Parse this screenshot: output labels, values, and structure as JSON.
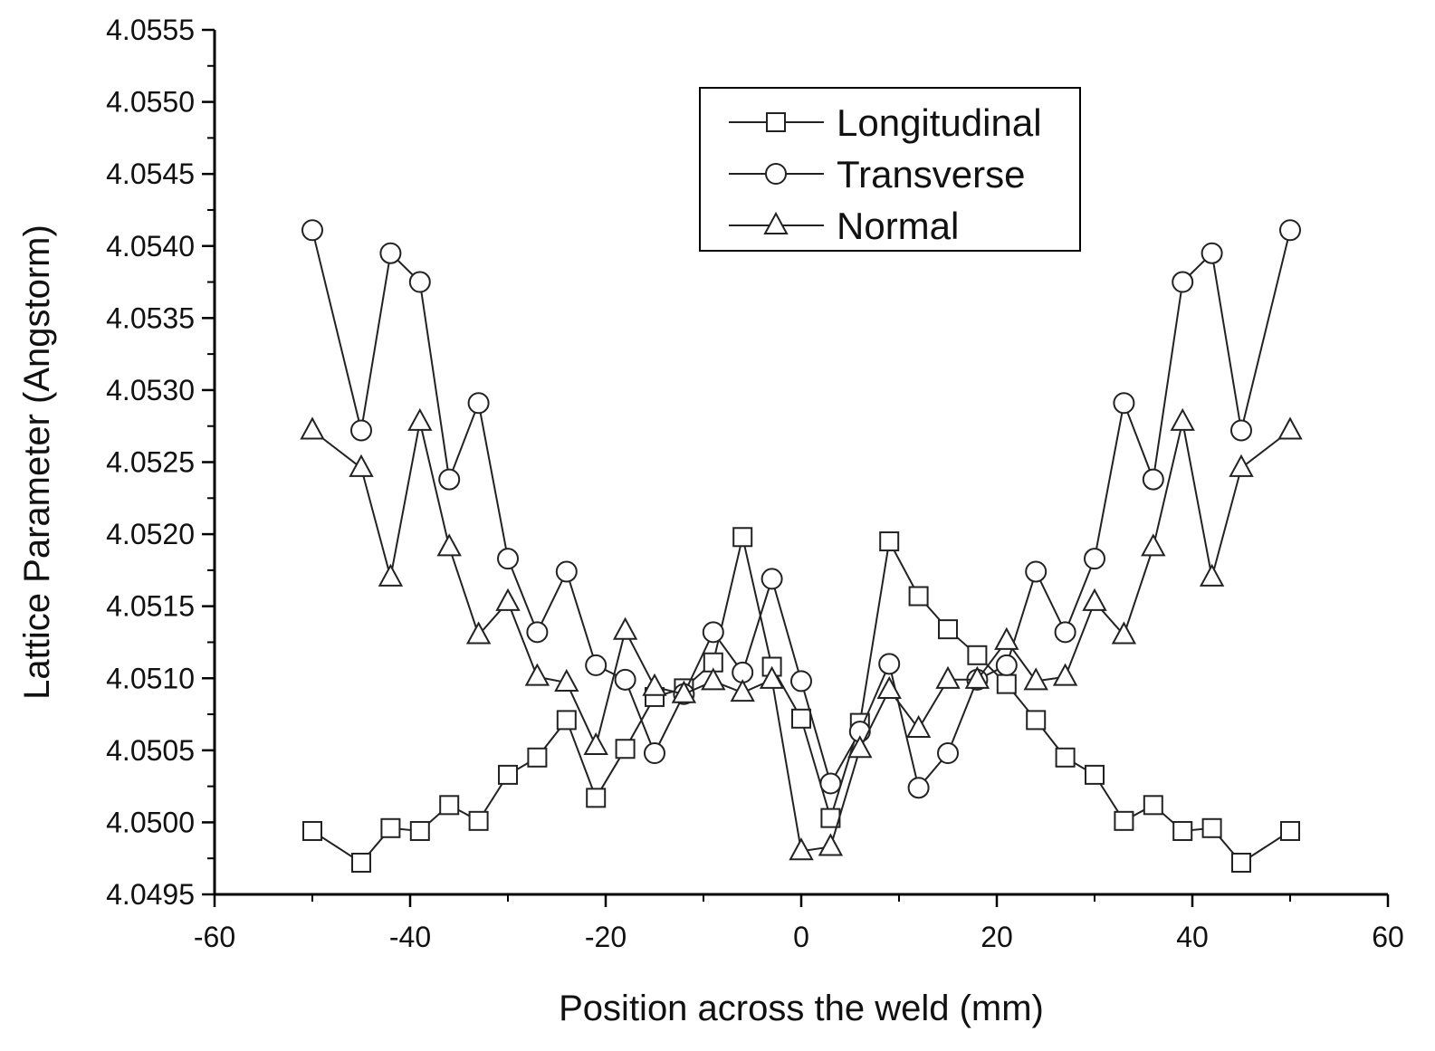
{
  "chart_data": {
    "type": "line",
    "xlabel": "Position across the weld (mm)",
    "ylabel": "Lattice Parameter (Angstorm)",
    "xlim": [
      -60,
      60
    ],
    "ylim": [
      4.0495,
      4.0555
    ],
    "x_ticks": [
      "-60",
      "-40",
      "-20",
      "0",
      "20",
      "40",
      "60"
    ],
    "y_ticks": [
      "4.0495",
      "4.0500",
      "4.0505",
      "4.0510",
      "4.0515",
      "4.0520",
      "4.0525",
      "4.0530",
      "4.0535",
      "4.0540",
      "4.0545",
      "4.0550",
      "4.0555"
    ],
    "grid": false,
    "legend_position": "top-right",
    "series_style": {
      "color": "#222222",
      "marker_fill": "#ffffff"
    },
    "series": [
      {
        "name": "Longitudinal",
        "marker": "square",
        "x": [
          -50,
          -45,
          -42,
          -39,
          -36,
          -33,
          -30,
          -27,
          -24,
          -21,
          -18,
          -15,
          -12,
          -9,
          -6,
          -3,
          0,
          3,
          6,
          9,
          12,
          15,
          18,
          21,
          24,
          27,
          30,
          33,
          36,
          39,
          42,
          45,
          50
        ],
        "y": [
          4.04994,
          4.04972,
          4.04996,
          4.04994,
          4.05012,
          4.05001,
          4.05033,
          4.05045,
          4.05071,
          4.05017,
          4.05051,
          4.05087,
          4.05093,
          4.05111,
          4.05198,
          4.05108,
          4.05072,
          4.05003,
          4.05069,
          4.05195,
          4.05157,
          4.05134,
          4.05116,
          4.05096,
          4.05071,
          4.05045,
          4.05033,
          4.05001,
          4.05012,
          4.04994,
          4.04996,
          4.04972,
          4.04994
        ]
      },
      {
        "name": "Transverse",
        "marker": "circle",
        "x": [
          -50,
          -45,
          -42,
          -39,
          -36,
          -33,
          -30,
          -27,
          -24,
          -21,
          -18,
          -15,
          -12,
          -9,
          -6,
          -3,
          0,
          3,
          6,
          9,
          12,
          15,
          18,
          21,
          24,
          27,
          30,
          33,
          36,
          39,
          42,
          45,
          50
        ],
        "y": [
          4.05411,
          4.05272,
          4.05395,
          4.05375,
          4.05238,
          4.05291,
          4.05183,
          4.05132,
          4.05174,
          4.05109,
          4.05099,
          4.05048,
          4.05089,
          4.05132,
          4.05104,
          4.05169,
          4.05098,
          4.05027,
          4.05063,
          4.0511,
          4.05024,
          4.05048,
          4.05099,
          4.05109,
          4.05174,
          4.05132,
          4.05183,
          4.05291,
          4.05238,
          4.05375,
          4.05395,
          4.05272,
          4.05411
        ]
      },
      {
        "name": "Normal",
        "marker": "triangle",
        "x": [
          -50,
          -45,
          -42,
          -39,
          -36,
          -33,
          -30,
          -27,
          -24,
          -21,
          -18,
          -15,
          -12,
          -9,
          -6,
          -3,
          0,
          3,
          6,
          9,
          12,
          15,
          18,
          21,
          24,
          27,
          30,
          33,
          36,
          39,
          42,
          45,
          50
        ],
        "y": [
          4.05272,
          4.05246,
          4.0517,
          4.05278,
          4.05191,
          4.0513,
          4.05153,
          4.05101,
          4.05097,
          4.05053,
          4.05133,
          4.05094,
          4.05089,
          4.05098,
          4.0509,
          4.05099,
          4.0498,
          4.04983,
          4.05051,
          4.05092,
          4.05065,
          4.05099,
          4.05099,
          4.05126,
          4.05098,
          4.05101,
          4.05153,
          4.0513,
          4.05191,
          4.05278,
          4.0517,
          4.05246,
          4.05272
        ]
      }
    ]
  }
}
